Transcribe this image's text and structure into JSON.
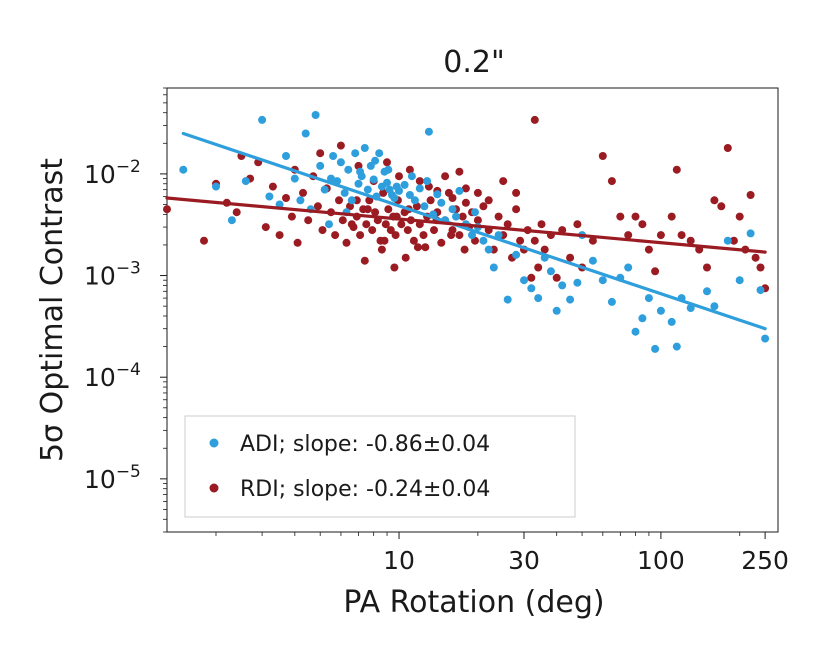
{
  "chart_data": {
    "type": "scatter",
    "title": "0.2\"",
    "xlabel": "PA Rotation (deg)",
    "ylabel": "5σ Optimal Contrast",
    "xscale": "log",
    "yscale": "log",
    "xlim": [
      1.3,
      280
    ],
    "ylim": [
      3e-06,
      0.07
    ],
    "x_ticks": [
      {
        "value": 10,
        "label": "10"
      },
      {
        "value": 30,
        "label": "30"
      },
      {
        "value": 100,
        "label": "100"
      },
      {
        "value": 250,
        "label": "250"
      }
    ],
    "y_ticks": [
      {
        "value": 0.01,
        "base": "10",
        "exp": "−2"
      },
      {
        "value": 0.001,
        "base": "10",
        "exp": "−3"
      },
      {
        "value": 0.0001,
        "base": "10",
        "exp": "−4"
      },
      {
        "value": 1e-05,
        "base": "10",
        "exp": "−5"
      }
    ],
    "legend_position": "lower-left",
    "series": [
      {
        "name": "ADI",
        "label": "ADI; slope: -0.86±0.04",
        "color": "#2e9fdc",
        "fit_line": {
          "x": [
            1.5,
            250
          ],
          "y": [
            0.025,
            0.0003
          ]
        },
        "points": [
          [
            1.5,
            0.011
          ],
          [
            2.0,
            0.0075
          ],
          [
            2.3,
            0.0035
          ],
          [
            2.6,
            0.0085
          ],
          [
            3.0,
            0.034
          ],
          [
            3.2,
            0.006
          ],
          [
            3.5,
            0.005
          ],
          [
            3.7,
            0.015
          ],
          [
            4.0,
            0.009
          ],
          [
            4.2,
            0.0055
          ],
          [
            4.4,
            0.025
          ],
          [
            4.6,
            0.0045
          ],
          [
            4.8,
            0.038
          ],
          [
            5.0,
            0.012
          ],
          [
            5.2,
            0.007
          ],
          [
            5.4,
            0.0032
          ],
          [
            5.6,
            0.015
          ],
          [
            5.8,
            0.0085
          ],
          [
            6.0,
            0.013
          ],
          [
            6.2,
            0.0065
          ],
          [
            6.4,
            0.011
          ],
          [
            6.6,
            0.0055
          ],
          [
            6.8,
            0.016
          ],
          [
            7.0,
            0.008
          ],
          [
            7.2,
            0.0095
          ],
          [
            7.4,
            0.018
          ],
          [
            7.6,
            0.007
          ],
          [
            7.8,
            0.012
          ],
          [
            8.0,
            0.0088
          ],
          [
            8.2,
            0.006
          ],
          [
            8.4,
            0.016
          ],
          [
            8.6,
            0.0075
          ],
          [
            8.8,
            0.0105
          ],
          [
            9.0,
            0.0082
          ],
          [
            9.2,
            0.007
          ],
          [
            9.4,
            0.0062
          ],
          [
            9.6,
            0.0058
          ],
          [
            9.8,
            0.0075
          ],
          [
            10.0,
            0.0068
          ],
          [
            10.5,
            0.0078
          ],
          [
            11.0,
            0.0062
          ],
          [
            11.5,
            0.0055
          ],
          [
            12.0,
            0.0072
          ],
          [
            12.5,
            0.0048
          ],
          [
            13.0,
            0.026
          ],
          [
            13.5,
            0.004
          ],
          [
            14.0,
            0.0063
          ],
          [
            15.0,
            0.0035
          ],
          [
            16.0,
            0.0045
          ],
          [
            17.0,
            0.0068
          ],
          [
            18.0,
            0.0032
          ],
          [
            19.0,
            0.0025
          ],
          [
            20.0,
            0.003
          ],
          [
            21.0,
            0.0022
          ],
          [
            22.0,
            0.0018
          ],
          [
            23.0,
            0.0012
          ],
          [
            24.0,
            0.0025
          ],
          [
            26.0,
            0.00058
          ],
          [
            28.0,
            0.0016
          ],
          [
            30.0,
            0.0009
          ],
          [
            32.0,
            0.00075
          ],
          [
            34.0,
            0.0006
          ],
          [
            36.0,
            0.0015
          ],
          [
            38.0,
            0.0011
          ],
          [
            40.0,
            0.00045
          ],
          [
            42.0,
            0.0008
          ],
          [
            45.0,
            0.00058
          ],
          [
            48.0,
            0.00085
          ],
          [
            50.0,
            0.0025
          ],
          [
            55.0,
            0.0014
          ],
          [
            60.0,
            0.0009
          ],
          [
            65.0,
            0.00055
          ],
          [
            70.0,
            0.00095
          ],
          [
            75.0,
            0.0012
          ],
          [
            80.0,
            0.00028
          ],
          [
            85.0,
            0.00038
          ],
          [
            90.0,
            0.0006
          ],
          [
            95.0,
            0.00019
          ],
          [
            100.0,
            0.00045
          ],
          [
            110.0,
            0.00035
          ],
          [
            115.0,
            0.0002
          ],
          [
            120.0,
            0.0006
          ],
          [
            130.0,
            0.00048
          ],
          [
            150.0,
            0.0007
          ],
          [
            160.0,
            0.0005
          ],
          [
            180.0,
            0.0022
          ],
          [
            200.0,
            0.0009
          ],
          [
            220.0,
            0.0026
          ],
          [
            240.0,
            0.00072
          ],
          [
            250.0,
            0.00024
          ],
          [
            5.5,
            0.009
          ],
          [
            6.3,
            0.0042
          ],
          [
            7.1,
            0.0105
          ],
          [
            8.1,
            0.0135
          ],
          [
            9.1,
            0.011
          ],
          [
            11.2,
            0.0095
          ],
          [
            12.8,
            0.0085
          ],
          [
            14.5,
            0.0052
          ],
          [
            16.5,
            0.0038
          ],
          [
            19.5,
            0.0042
          ]
        ]
      },
      {
        "name": "RDI",
        "label": "RDI; slope: -0.24±0.04",
        "color": "#9b1b22",
        "fit_line": {
          "x": [
            1.3,
            250
          ],
          "y": [
            0.0058,
            0.0017
          ]
        },
        "points": [
          [
            1.3,
            0.0045
          ],
          [
            1.8,
            0.0022
          ],
          [
            2.0,
            0.008
          ],
          [
            2.2,
            0.0052
          ],
          [
            2.4,
            0.0042
          ],
          [
            2.5,
            0.015
          ],
          [
            2.7,
            0.009
          ],
          [
            2.9,
            0.013
          ],
          [
            3.1,
            0.003
          ],
          [
            3.3,
            0.0075
          ],
          [
            3.5,
            0.0025
          ],
          [
            3.7,
            0.0058
          ],
          [
            3.9,
            0.0038
          ],
          [
            4.1,
            0.0021
          ],
          [
            4.3,
            0.0065
          ],
          [
            4.5,
            0.0035
          ],
          [
            4.7,
            0.0095
          ],
          [
            4.9,
            0.0048
          ],
          [
            5.1,
            0.0028
          ],
          [
            5.3,
            0.0072
          ],
          [
            5.5,
            0.0042
          ],
          [
            5.7,
            0.0025
          ],
          [
            5.9,
            0.0055
          ],
          [
            6.1,
            0.0035
          ],
          [
            6.3,
            0.0021
          ],
          [
            6.5,
            0.0048
          ],
          [
            6.7,
            0.003
          ],
          [
            6.9,
            0.0038
          ],
          [
            7.1,
            0.0025
          ],
          [
            7.3,
            0.0045
          ],
          [
            7.5,
            0.0032
          ],
          [
            7.7,
            0.0055
          ],
          [
            7.9,
            0.0028
          ],
          [
            8.1,
            0.0042
          ],
          [
            8.3,
            0.0035
          ],
          [
            8.5,
            0.0022
          ],
          [
            8.7,
            0.0065
          ],
          [
            8.9,
            0.0032
          ],
          [
            9.1,
            0.0045
          ],
          [
            9.3,
            0.0028
          ],
          [
            9.5,
            0.0038
          ],
          [
            9.7,
            0.0025
          ],
          [
            9.9,
            0.0055
          ],
          [
            10.2,
            0.0032
          ],
          [
            10.5,
            0.0042
          ],
          [
            10.8,
            0.0028
          ],
          [
            11.1,
            0.0035
          ],
          [
            11.4,
            0.0022
          ],
          [
            11.7,
            0.0048
          ],
          [
            12.0,
            0.0032
          ],
          [
            12.4,
            0.0025
          ],
          [
            12.8,
            0.0038
          ],
          [
            13.2,
            0.0055
          ],
          [
            13.6,
            0.0028
          ],
          [
            14.0,
            0.0042
          ],
          [
            14.5,
            0.0021
          ],
          [
            15.0,
            0.0035
          ],
          [
            15.5,
            0.0065
          ],
          [
            16.0,
            0.0028
          ],
          [
            16.5,
            0.0045
          ],
          [
            17.0,
            0.0025
          ],
          [
            17.5,
            0.0038
          ],
          [
            18.0,
            0.0052
          ],
          [
            18.5,
            0.003
          ],
          [
            19.0,
            0.0042
          ],
          [
            19.5,
            0.0022
          ],
          [
            20.0,
            0.0035
          ],
          [
            21.0,
            0.0048
          ],
          [
            22.0,
            0.0028
          ],
          [
            23.0,
            0.0018
          ],
          [
            24.0,
            0.0038
          ],
          [
            25.0,
            0.0025
          ],
          [
            26.0,
            0.0032
          ],
          [
            27.0,
            0.0015
          ],
          [
            28.0,
            0.0045
          ],
          [
            29.0,
            0.0022
          ],
          [
            30.0,
            0.0018
          ],
          [
            31.0,
            0.0028
          ],
          [
            32.0,
            0.00095
          ],
          [
            33.0,
            0.0022
          ],
          [
            34.0,
            0.0012
          ],
          [
            35.0,
            0.0032
          ],
          [
            36.0,
            0.0018
          ],
          [
            38.0,
            0.0025
          ],
          [
            40.0,
            0.00095
          ],
          [
            42.0,
            0.0028
          ],
          [
            45.0,
            0.0015
          ],
          [
            48.0,
            0.0032
          ],
          [
            50.0,
            0.0012
          ],
          [
            55.0,
            0.0022
          ],
          [
            60.0,
            0.015
          ],
          [
            65.0,
            0.0085
          ],
          [
            70.0,
            0.0038
          ],
          [
            75.0,
            0.0025
          ],
          [
            80.0,
            0.0038
          ],
          [
            85.0,
            0.0032
          ],
          [
            90.0,
            0.0018
          ],
          [
            95.0,
            0.0011
          ],
          [
            100.0,
            0.0025
          ],
          [
            110.0,
            0.0038
          ],
          [
            115.0,
            0.011
          ],
          [
            120.0,
            0.0025
          ],
          [
            130.0,
            0.0022
          ],
          [
            140.0,
            0.0018
          ],
          [
            150.0,
            0.0012
          ],
          [
            160.0,
            0.0055
          ],
          [
            170.0,
            0.0048
          ],
          [
            180.0,
            0.018
          ],
          [
            190.0,
            0.0022
          ],
          [
            200.0,
            0.0038
          ],
          [
            210.0,
            0.0018
          ],
          [
            220.0,
            0.0062
          ],
          [
            230.0,
            0.0015
          ],
          [
            240.0,
            0.0012
          ],
          [
            250.0,
            0.00075
          ],
          [
            4.0,
            0.011
          ],
          [
            5.0,
            0.016
          ],
          [
            6.0,
            0.019
          ],
          [
            7.0,
            0.012
          ],
          [
            8.0,
            0.0085
          ],
          [
            9.0,
            0.013
          ],
          [
            10.0,
            0.0095
          ],
          [
            11.0,
            0.011
          ],
          [
            12.0,
            0.0085
          ],
          [
            13.0,
            0.0075
          ],
          [
            14.0,
            0.0068
          ],
          [
            15.0,
            0.0095
          ],
          [
            16.0,
            0.0058
          ],
          [
            17.0,
            0.0105
          ],
          [
            18.0,
            0.0072
          ],
          [
            20.0,
            0.0065
          ],
          [
            22.0,
            0.0055
          ],
          [
            25.0,
            0.0085
          ],
          [
            28.0,
            0.0065
          ],
          [
            33.0,
            0.034
          ],
          [
            8.6,
            0.0018
          ],
          [
            10.6,
            0.0015
          ],
          [
            12.6,
            0.0019
          ],
          [
            7.4,
            0.0014
          ],
          [
            9.6,
            0.0012
          ],
          [
            6.6,
            0.0032
          ],
          [
            6.9,
            0.0055
          ],
          [
            7.6,
            0.0045
          ],
          [
            8.8,
            0.0022
          ],
          [
            9.8,
            0.0038
          ],
          [
            10.9,
            0.0045
          ],
          [
            11.8,
            0.0019
          ],
          [
            13.9,
            0.0035
          ],
          [
            15.8,
            0.0025
          ],
          [
            17.8,
            0.0018
          ]
        ]
      }
    ]
  }
}
